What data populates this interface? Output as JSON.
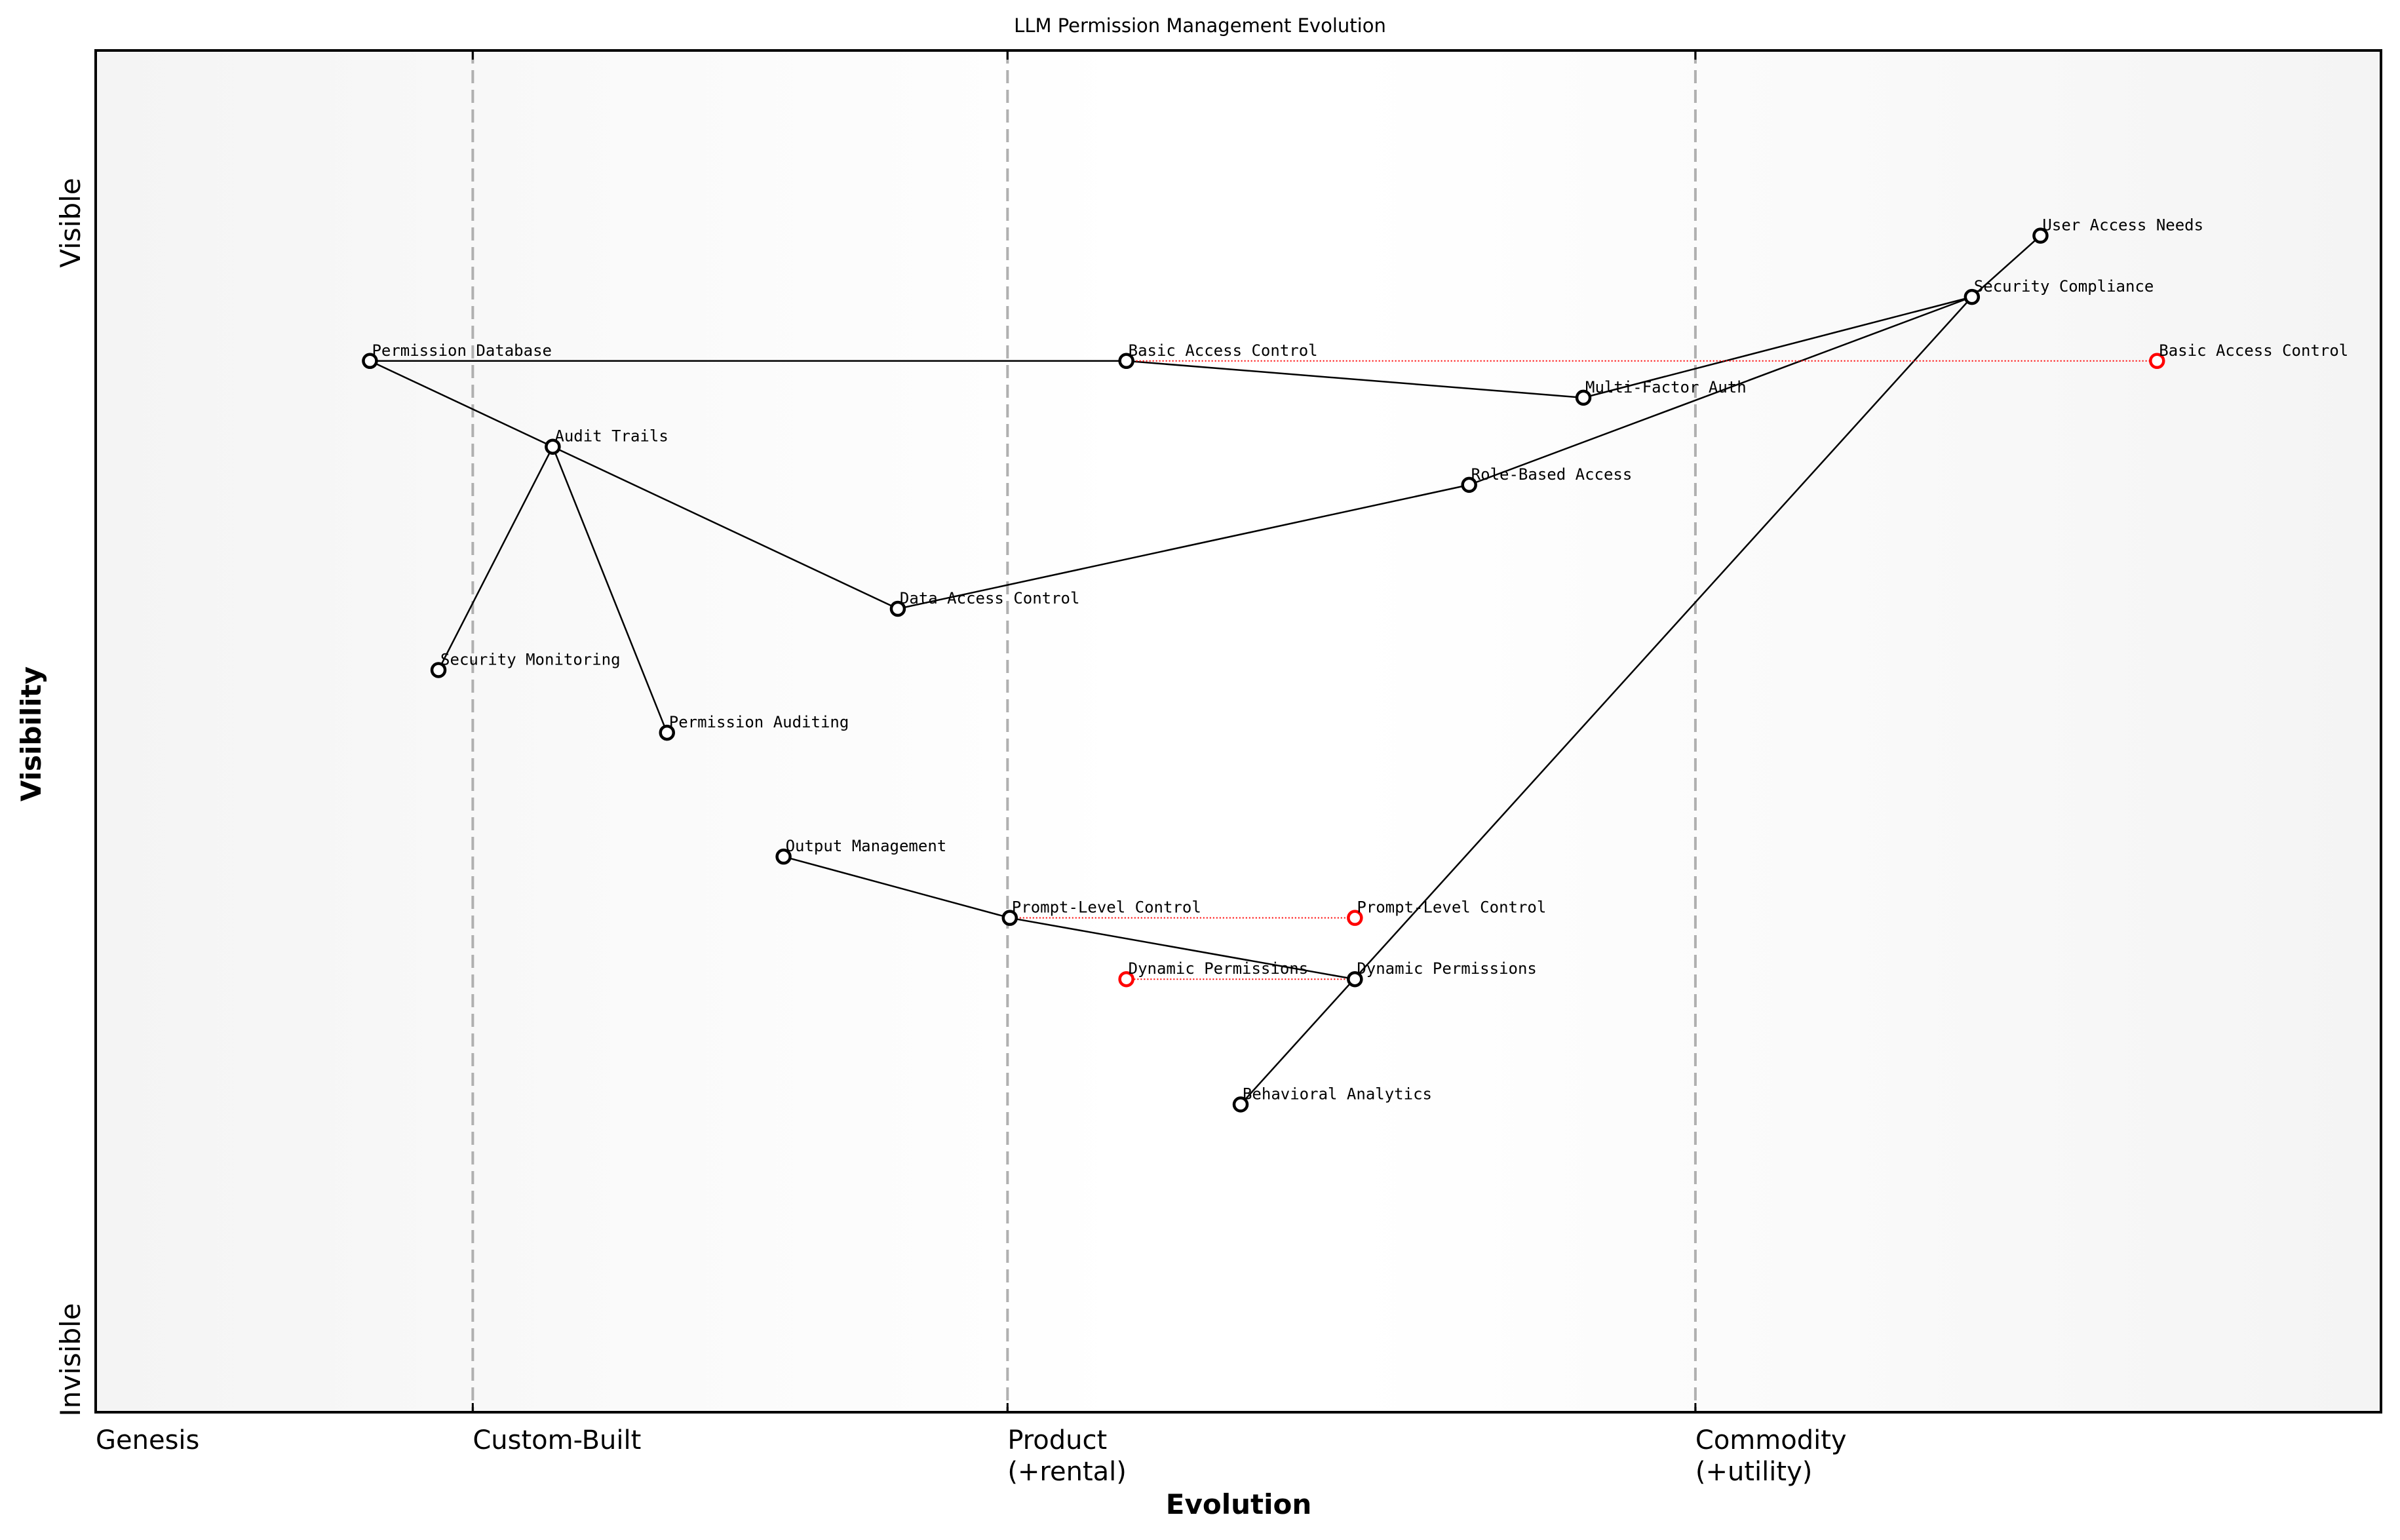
{
  "title": "LLM Permission Management Evolution",
  "chart_data": {
    "type": "scatter",
    "subtype": "wardley-map",
    "title": "LLM Permission Management Evolution",
    "xlabel": "Evolution",
    "ylabel": "Visibility",
    "xlim": [
      0,
      1
    ],
    "ylim": [
      0,
      1
    ],
    "grid": false,
    "x_stage_labels": [
      {
        "label": "Genesis",
        "x": 0.0
      },
      {
        "label": "Custom-Built",
        "x": 0.165
      },
      {
        "label": "Product\n(+rental)",
        "x": 0.399
      },
      {
        "label": "Commodity\n(+utility)",
        "x": 0.7
      }
    ],
    "stage_dividers": [
      0.165,
      0.399,
      0.7
    ],
    "y_tick_labels": [
      {
        "label": "Visible",
        "position": "top"
      },
      {
        "label": "Invisible",
        "position": "bottom"
      }
    ],
    "nodes": [
      {
        "id": "user-access-needs",
        "label": "User Access Needs",
        "x": 0.851,
        "y": 0.864,
        "type": "component"
      },
      {
        "id": "security-compliance",
        "label": "Security Compliance",
        "x": 0.821,
        "y": 0.819,
        "type": "component"
      },
      {
        "id": "permission-database",
        "label": "Permission Database",
        "x": 0.12,
        "y": 0.772,
        "type": "component"
      },
      {
        "id": "basic-access-control",
        "label": "Basic Access Control",
        "x": 0.451,
        "y": 0.772,
        "type": "component"
      },
      {
        "id": "multi-factor-auth",
        "label": "Multi-Factor Auth",
        "x": 0.651,
        "y": 0.745,
        "type": "component"
      },
      {
        "id": "audit-trails",
        "label": "Audit Trails",
        "x": 0.2,
        "y": 0.709,
        "type": "component"
      },
      {
        "id": "role-based-access",
        "label": "Role-Based Access",
        "x": 0.601,
        "y": 0.681,
        "type": "component"
      },
      {
        "id": "data-access-control",
        "label": "Data Access Control",
        "x": 0.351,
        "y": 0.59,
        "type": "component"
      },
      {
        "id": "security-monitoring",
        "label": "Security Monitoring",
        "x": 0.15,
        "y": 0.545,
        "type": "component"
      },
      {
        "id": "permission-auditing",
        "label": "Permission Auditing",
        "x": 0.25,
        "y": 0.499,
        "type": "component"
      },
      {
        "id": "output-management",
        "label": "Output Management",
        "x": 0.301,
        "y": 0.408,
        "type": "component"
      },
      {
        "id": "prompt-level-control",
        "label": "Prompt-Level Control",
        "x": 0.4,
        "y": 0.363,
        "type": "component"
      },
      {
        "id": "dynamic-permissions",
        "label": "Dynamic Permissions",
        "x": 0.551,
        "y": 0.318,
        "type": "component"
      },
      {
        "id": "behavioral-analytics",
        "label": "Behavioral Analytics",
        "x": 0.501,
        "y": 0.226,
        "type": "component"
      },
      {
        "id": "basic-access-control-evolved",
        "label": "Basic Access Control",
        "x": 0.902,
        "y": 0.772,
        "type": "evolved"
      },
      {
        "id": "prompt-level-control-evolved",
        "label": "Prompt-Level Control",
        "x": 0.551,
        "y": 0.363,
        "type": "evolved"
      },
      {
        "id": "dynamic-permissions-evolved",
        "label": "Dynamic Permissions",
        "x": 0.451,
        "y": 0.318,
        "type": "evolved"
      }
    ],
    "links": [
      {
        "from": "user-access-needs",
        "to": "security-compliance"
      },
      {
        "from": "security-compliance",
        "to": "multi-factor-auth"
      },
      {
        "from": "security-compliance",
        "to": "role-based-access"
      },
      {
        "from": "security-compliance",
        "to": "behavioral-analytics"
      },
      {
        "from": "multi-factor-auth",
        "to": "basic-access-control"
      },
      {
        "from": "basic-access-control",
        "to": "permission-database"
      },
      {
        "from": "role-based-access",
        "to": "data-access-control"
      },
      {
        "from": "data-access-control",
        "to": "audit-trails"
      },
      {
        "from": "audit-trails",
        "to": "permission-database"
      },
      {
        "from": "audit-trails",
        "to": "security-monitoring"
      },
      {
        "from": "audit-trails",
        "to": "permission-auditing"
      },
      {
        "from": "output-management",
        "to": "prompt-level-control"
      },
      {
        "from": "prompt-level-control",
        "to": "dynamic-permissions"
      }
    ],
    "evolution_links": [
      {
        "from": "basic-access-control",
        "to": "basic-access-control-evolved"
      },
      {
        "from": "prompt-level-control",
        "to": "prompt-level-control-evolved"
      },
      {
        "from": "dynamic-permissions",
        "to": "dynamic-permissions-evolved"
      }
    ]
  },
  "colors": {
    "component_stroke": "#000000",
    "evolved_stroke": "#ff0000",
    "divider": "#b0b0b0",
    "background_edge": "#f5f5f5",
    "background_center": "#ffffff"
  }
}
